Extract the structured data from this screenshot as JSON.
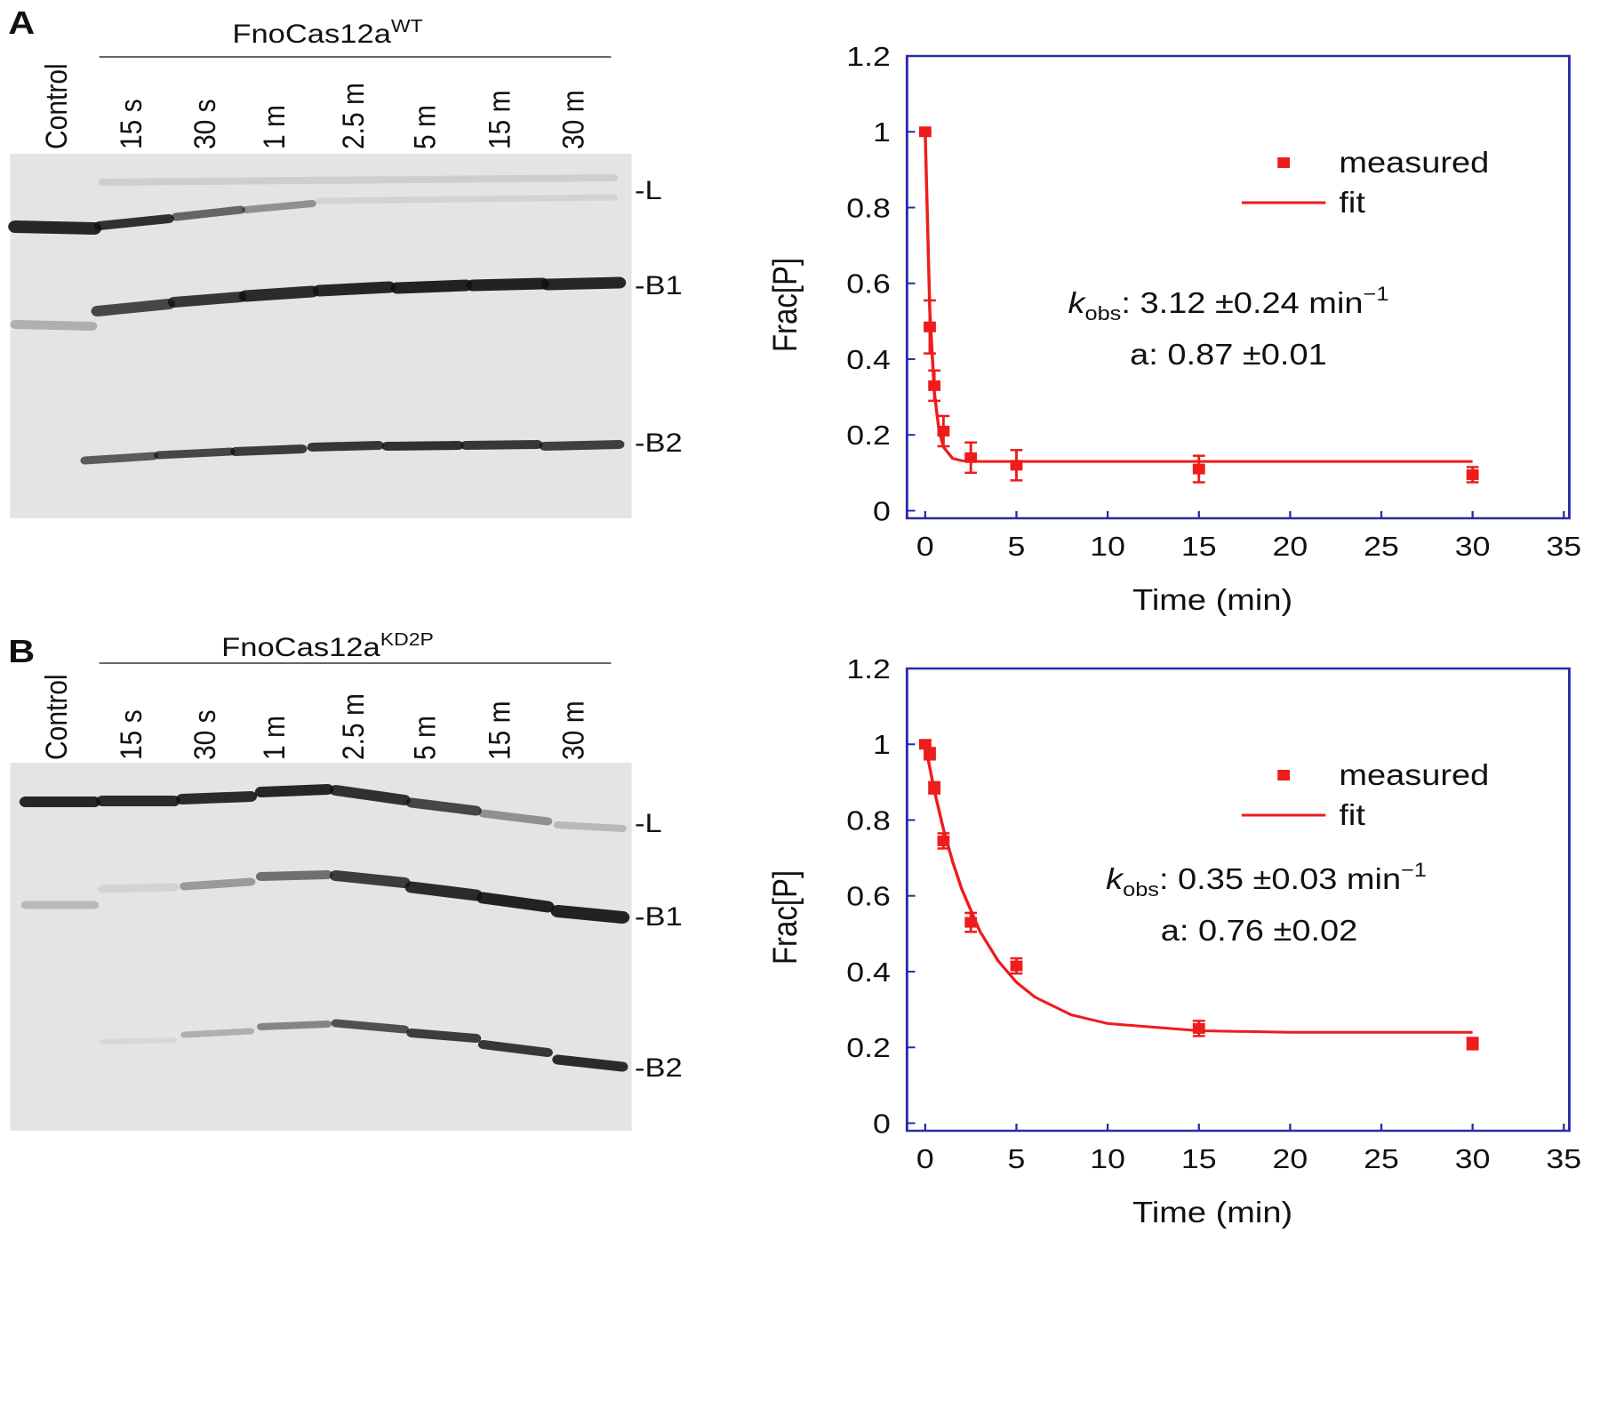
{
  "panels": [
    {
      "letter": "A",
      "gel": {
        "title": "FnoCas12a",
        "title_sup": "WT",
        "lanes": [
          "Control",
          "15 s",
          "30 s",
          "1 m",
          "2.5 m",
          "5 m",
          "15 m",
          "30 m"
        ],
        "bands": [
          "-L",
          "-B1",
          "-B2"
        ]
      }
    },
    {
      "letter": "B",
      "gel": {
        "title": "FnoCas12a",
        "title_sup": "KD2P",
        "lanes": [
          "Control",
          "15 s",
          "30 s",
          "1 m",
          "2.5 m",
          "5 m",
          "15 m",
          "30 m"
        ],
        "bands": [
          "-L",
          "-B1",
          "-B2"
        ]
      }
    }
  ],
  "chart_data": [
    {
      "type": "scatter",
      "x_label": "Time (min)",
      "y_label": "Frac[P]",
      "xlim": [
        -1,
        35.3
      ],
      "ylim": [
        -0.02,
        1.2
      ],
      "xticks": [
        0,
        5,
        10,
        15,
        20,
        25,
        30,
        35
      ],
      "yticks": [
        0,
        0.2,
        0.4,
        0.6,
        0.8,
        1,
        1.2
      ],
      "axis_color": "#2a2aa8",
      "legend": "upper right",
      "series": [
        {
          "name": "measured",
          "color": "#ee1c1c",
          "style": "marker",
          "x": [
            0,
            0.25,
            0.5,
            1,
            2.5,
            5,
            15,
            30
          ],
          "values": [
            1,
            0.485,
            0.33,
            0.21,
            0.14,
            0.12,
            0.11,
            0.095
          ],
          "errors": [
            0,
            0.07,
            0.04,
            0.04,
            0.04,
            0.04,
            0.035,
            0.02
          ]
        },
        {
          "name": "fit",
          "color": "#ee1c1c",
          "style": "line",
          "x": [
            0,
            0.25,
            0.5,
            0.75,
            1,
            1.5,
            2,
            3,
            5,
            10,
            15,
            20,
            30
          ],
          "values": [
            1,
            0.528,
            0.313,
            0.214,
            0.168,
            0.138,
            0.132,
            0.13,
            0.13,
            0.13,
            0.13,
            0.13,
            0.13
          ]
        }
      ],
      "annotations": [
        {
          "symbol": "k",
          "subscript": "obs",
          "text": ": 3.12  ±0.24 min",
          "superscript": "−1"
        },
        {
          "text": "a: 0.87  ±0.01"
        }
      ]
    },
    {
      "type": "scatter",
      "x_label": "Time (min)",
      "y_label": "Frac[P]",
      "xlim": [
        -1,
        35.3
      ],
      "ylim": [
        -0.02,
        1.2
      ],
      "xticks": [
        0,
        5,
        10,
        15,
        20,
        25,
        30,
        35
      ],
      "yticks": [
        0,
        0.2,
        0.4,
        0.6,
        0.8,
        1,
        1.2
      ],
      "axis_color": "#2a2aa8",
      "legend": "upper right",
      "series": [
        {
          "name": "measured",
          "color": "#ee1c1c",
          "style": "marker",
          "x": [
            0,
            0.25,
            0.5,
            1,
            2.5,
            5,
            15,
            30
          ],
          "values": [
            1,
            0.975,
            0.885,
            0.745,
            0.53,
            0.415,
            0.25,
            0.21
          ],
          "errors": [
            0.01,
            0.015,
            0.015,
            0.02,
            0.025,
            0.02,
            0.02,
            0.015
          ]
        },
        {
          "name": "fit",
          "color": "#ee1c1c",
          "style": "line",
          "x": [
            0,
            0.5,
            1,
            1.5,
            2,
            3,
            4,
            5,
            6,
            8,
            10,
            15,
            20,
            30
          ],
          "values": [
            1,
            0.878,
            0.776,
            0.69,
            0.618,
            0.506,
            0.428,
            0.372,
            0.333,
            0.286,
            0.263,
            0.244,
            0.24,
            0.24
          ]
        }
      ],
      "annotations": [
        {
          "symbol": "k",
          "subscript": "obs",
          "text": ": 0.35  ±0.03 min",
          "superscript": "−1"
        },
        {
          "text": "a: 0.76  ±0.02"
        }
      ]
    }
  ]
}
